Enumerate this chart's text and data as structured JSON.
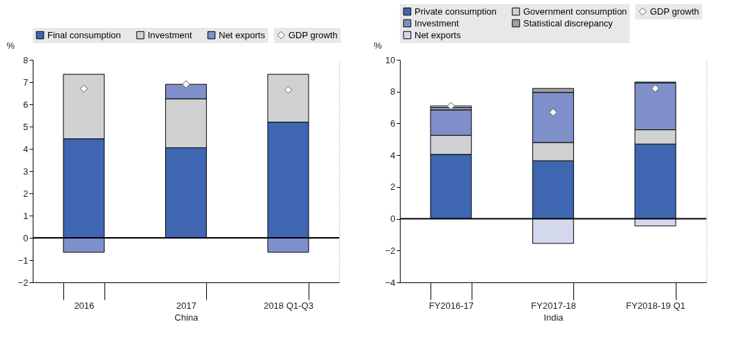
{
  "chart_data": [
    {
      "type": "bar",
      "stacked": true,
      "categories": [
        "2016",
        "2017",
        "2018 Q1-Q3"
      ],
      "xlabel": "China",
      "ylabel": "%",
      "ylim": [
        -2,
        8
      ],
      "yticks": [
        -2,
        -1,
        0,
        1,
        2,
        3,
        4,
        5,
        6,
        7,
        8
      ],
      "grid": true,
      "legend": "top",
      "ref_lines": [
        {
          "axis": "y",
          "value": 0,
          "color": "#000000"
        }
      ],
      "series": [
        {
          "name": "Final consumption",
          "color": "#3f66b0",
          "values": [
            4.45,
            4.05,
            5.2
          ]
        },
        {
          "name": "Investment",
          "color": "#d0d1d3",
          "values": [
            2.9,
            2.2,
            2.15
          ]
        },
        {
          "name": "Net exports",
          "color": "#7f8fc9",
          "values": [
            -0.65,
            0.65,
            -0.65
          ]
        },
        {
          "name": "GDP growth",
          "type": "scatter",
          "marker": "diamond",
          "color": "#ffffff",
          "values": [
            6.7,
            6.9,
            6.65
          ]
        }
      ]
    },
    {
      "type": "bar",
      "stacked": true,
      "categories": [
        "FY2016-17",
        "FY2017-18",
        "FY2018-19 Q1"
      ],
      "xlabel": "India",
      "ylabel": "%",
      "ylim": [
        -4,
        10
      ],
      "yticks": [
        -4,
        -2,
        0,
        2,
        4,
        6,
        8,
        10
      ],
      "grid": true,
      "legend": "top",
      "ref_lines": [
        {
          "axis": "y",
          "value": 0,
          "color": "#000000"
        }
      ],
      "series": [
        {
          "name": "Private consumption",
          "color": "#3f66b0",
          "values": [
            4.05,
            3.65,
            4.7
          ]
        },
        {
          "name": "Government consumption",
          "color": "#d0d1d3",
          "values": [
            1.2,
            1.15,
            0.9
          ]
        },
        {
          "name": "Investment",
          "color": "#7f8fc9",
          "values": [
            1.6,
            3.15,
            2.95
          ]
        },
        {
          "name": "Statistical discrepancy",
          "color": "#a0a0a0",
          "values": [
            0.15,
            0.25,
            0.05
          ]
        },
        {
          "name": "Net exports",
          "color": "#d3d8ec",
          "values": [
            0.1,
            -1.55,
            -0.45
          ]
        },
        {
          "name": "GDP growth",
          "type": "scatter",
          "marker": "diamond",
          "color": "#ffffff",
          "values": [
            7.1,
            6.7,
            8.2
          ]
        }
      ]
    }
  ]
}
